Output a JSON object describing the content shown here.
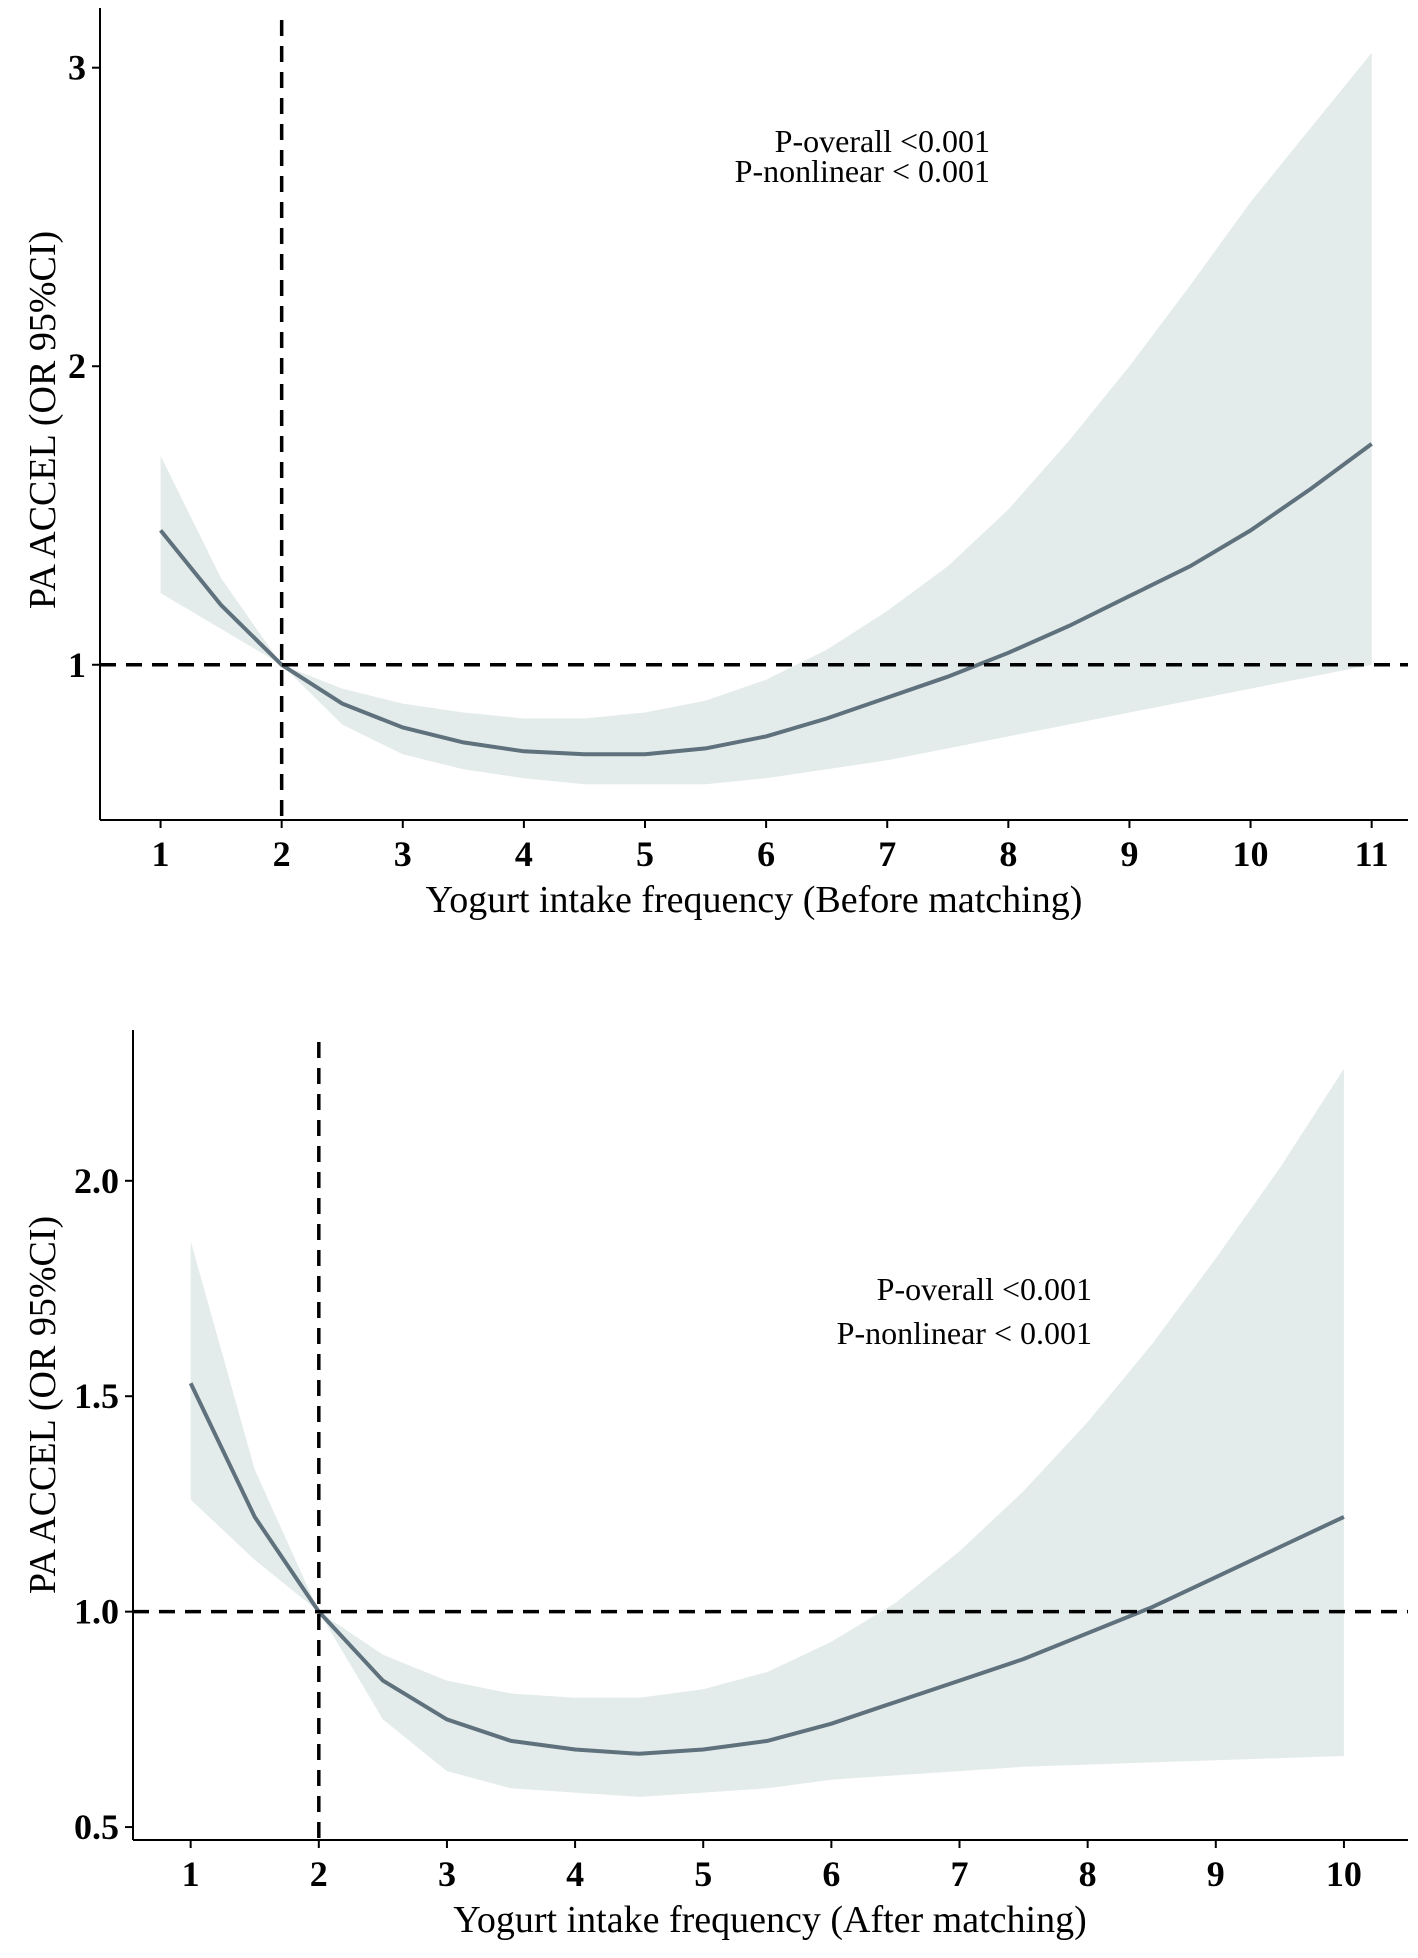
{
  "chart_data": [
    {
      "type": "line",
      "panel": "top",
      "xlabel": "Yogurt intake frequency (Before matching)",
      "ylabel": "PA ACCEL (OR 95%CI)",
      "xticks": [
        "1",
        "2",
        "3",
        "4",
        "5",
        "6",
        "7",
        "8",
        "9",
        "10",
        "11"
      ],
      "yticks": [
        "1",
        "2",
        "3"
      ],
      "ytick_values": [
        1,
        2,
        3
      ],
      "xlim": [
        0.5,
        11.3
      ],
      "ylim": [
        0.48,
        3.2
      ],
      "annotations": [
        "P-overall <0.001",
        "P-nonlinear < 0.001"
      ],
      "ref_x": 2,
      "ref_y": 1,
      "series": [
        {
          "name": "OR",
          "x": [
            1,
            1.5,
            2,
            2.5,
            3,
            3.5,
            4,
            4.5,
            5,
            5.5,
            6,
            6.5,
            7,
            7.5,
            8,
            8.5,
            9,
            9.5,
            10,
            10.5,
            11
          ],
          "y": [
            1.45,
            1.2,
            1.0,
            0.87,
            0.79,
            0.74,
            0.71,
            0.7,
            0.7,
            0.72,
            0.76,
            0.82,
            0.89,
            0.96,
            1.04,
            1.13,
            1.23,
            1.33,
            1.45,
            1.59,
            1.74
          ],
          "lower": [
            1.24,
            1.12,
            1.0,
            0.8,
            0.7,
            0.65,
            0.62,
            0.6,
            0.6,
            0.6,
            0.62,
            0.65,
            0.68,
            0.72,
            0.76,
            0.8,
            0.84,
            0.88,
            0.92,
            0.96,
            1.0
          ],
          "upper": [
            1.7,
            1.29,
            1.0,
            0.92,
            0.87,
            0.84,
            0.82,
            0.82,
            0.84,
            0.88,
            0.95,
            1.05,
            1.18,
            1.33,
            1.52,
            1.75,
            2.0,
            2.27,
            2.55,
            2.8,
            3.05
          ]
        }
      ]
    },
    {
      "type": "line",
      "panel": "bottom",
      "xlabel": "Yogurt intake frequency (After matching)",
      "ylabel": "PA ACCEL (OR 95%CI)",
      "xticks": [
        "1",
        "2",
        "3",
        "4",
        "5",
        "6",
        "7",
        "8",
        "9",
        "10"
      ],
      "yticks": [
        "0.5",
        "1.0",
        "1.5",
        "2.0"
      ],
      "ytick_values": [
        0.5,
        1.0,
        1.5,
        2.0
      ],
      "xlim": [
        0.55,
        10.5
      ],
      "ylim": [
        0.47,
        2.35
      ],
      "annotations": [
        "P-overall <0.001",
        "P-nonlinear < 0.001"
      ],
      "ref_x": 2,
      "ref_y": 1.0,
      "series": [
        {
          "name": "OR",
          "x": [
            1,
            1.5,
            2,
            2.5,
            3,
            3.5,
            4,
            4.5,
            5,
            5.5,
            6,
            6.5,
            7,
            7.5,
            8,
            8.5,
            9,
            9.5,
            10
          ],
          "y": [
            1.53,
            1.22,
            1.0,
            0.84,
            0.75,
            0.7,
            0.68,
            0.67,
            0.68,
            0.7,
            0.74,
            0.79,
            0.84,
            0.89,
            0.95,
            1.01,
            1.08,
            1.15,
            1.22
          ],
          "lower": [
            1.26,
            1.12,
            1.0,
            0.75,
            0.63,
            0.59,
            0.58,
            0.57,
            0.58,
            0.59,
            0.61,
            0.62,
            0.63,
            0.64,
            0.645,
            0.65,
            0.655,
            0.66,
            0.665
          ],
          "upper": [
            1.86,
            1.33,
            1.0,
            0.9,
            0.84,
            0.81,
            0.8,
            0.8,
            0.82,
            0.86,
            0.93,
            1.02,
            1.14,
            1.28,
            1.44,
            1.62,
            1.82,
            2.03,
            2.26
          ]
        }
      ]
    }
  ]
}
